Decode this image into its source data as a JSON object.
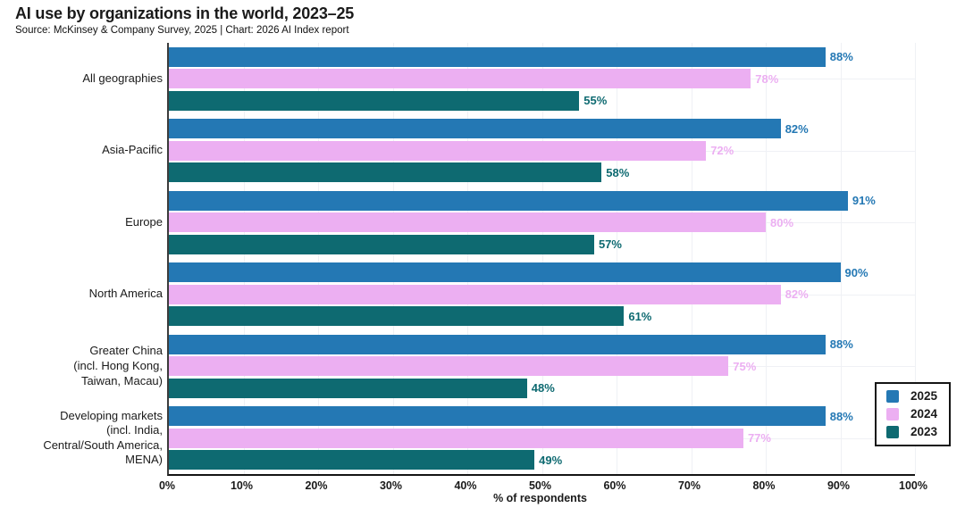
{
  "header": {
    "title": "AI use by organizations in the world, 2023–25",
    "subtitle": "Source: McKinsey & Company Survey, 2025 | Chart: 2026 AI Index report"
  },
  "chart_data": {
    "type": "bar",
    "orientation": "horizontal",
    "title": "AI use by organizations in the world, 2023–25",
    "subtitle": "Source: McKinsey & Company Survey, 2025 | Chart: 2026 AI Index report",
    "categories": [
      "All geographies",
      "Asia-Pacific",
      "Europe",
      "North America",
      "Greater China\n(incl. Hong Kong,\nTaiwan, Macau)",
      "Developing markets\n(incl. India,\nCentral/South America,\nMENA)"
    ],
    "series": [
      {
        "name": "2025",
        "color": "#2478b4",
        "values": [
          88,
          82,
          91,
          90,
          88,
          88
        ]
      },
      {
        "name": "2024",
        "color": "#ecaff2",
        "values": [
          78,
          72,
          80,
          82,
          75,
          77
        ]
      },
      {
        "name": "2023",
        "color": "#0e6a71",
        "values": [
          55,
          58,
          57,
          61,
          48,
          49
        ]
      }
    ],
    "value_suffix": "%",
    "xlabel": "% of respondents",
    "ylabel": "",
    "xlim": [
      0,
      100
    ],
    "x_ticks": [
      "0%",
      "10%",
      "20%",
      "30%",
      "40%",
      "50%",
      "60%",
      "70%",
      "80%",
      "90%",
      "100%"
    ],
    "grid": true,
    "gridline_color": "#eff1f5",
    "legend_position": "lower right",
    "legend_items": [
      "2025",
      "2024",
      "2023"
    ],
    "accent_colors": {
      "2025": "#2478b4",
      "2024": "#ecaff2",
      "2023": "#0e6a71"
    }
  }
}
